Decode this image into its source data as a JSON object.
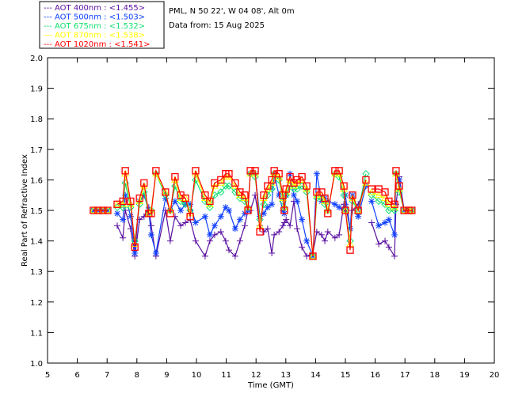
{
  "header": {
    "site": "PML, N 50 22', W 04 08', Alt 0m",
    "date": "Data from: 15 Aug 2025"
  },
  "chart_data": {
    "type": "line",
    "xlabel": "Time (GMT)",
    "ylabel": "Real Part of Refractive Index",
    "xlim": [
      5,
      20
    ],
    "ylim": [
      1.0,
      2.0
    ],
    "xticks": [
      "5",
      "6",
      "7",
      "8",
      "9",
      "10",
      "11",
      "12",
      "13",
      "14",
      "15",
      "16",
      "17",
      "18",
      "19",
      "20"
    ],
    "yticks": [
      "1.0",
      "1.1",
      "1.2",
      "1.3",
      "1.4",
      "1.5",
      "1.6",
      "1.7",
      "1.8",
      "1.9",
      "2.0"
    ],
    "legend_position": "top-left",
    "x": [
      6.54,
      6.7,
      6.86,
      7.02,
      null,
      7.34,
      7.53,
      7.61,
      7.79,
      7.93,
      8.09,
      8.24,
      8.4,
      8.48,
      8.64,
      8.96,
      9.12,
      9.28,
      9.47,
      9.63,
      9.79,
      9.97,
      10.29,
      10.45,
      10.61,
      10.82,
      10.98,
      11.09,
      11.3,
      11.46,
      11.62,
      11.73,
      11.81,
      11.97,
      12.13,
      12.26,
      12.39,
      12.53,
      12.61,
      12.77,
      12.9,
      12.95,
      13.01,
      13.14,
      13.27,
      13.38,
      13.54,
      13.7,
      13.91,
      14.04,
      14.2,
      14.31,
      14.41,
      14.65,
      14.79,
      14.95,
      15.0,
      15.16,
      15.24,
      15.43,
      15.69,
      null,
      15.88,
      16.12,
      16.33,
      16.46,
      16.65,
      16.7,
      16.81,
      16.97,
      17.13,
      17.23
    ],
    "series": [
      {
        "name": "AOT  400nm",
        "mean": "<1.455>",
        "label": "---  AOT  400nm : <1.455>",
        "color": "#5a0fa0",
        "marker": "plus",
        "values": [
          1.5,
          1.5,
          1.5,
          1.5,
          null,
          1.45,
          1.41,
          1.5,
          1.44,
          1.35,
          1.47,
          1.48,
          1.51,
          1.45,
          1.35,
          1.5,
          1.4,
          1.48,
          1.45,
          1.46,
          1.47,
          1.4,
          1.35,
          1.4,
          1.42,
          1.43,
          1.4,
          1.37,
          1.35,
          1.4,
          1.45,
          1.5,
          1.5,
          1.55,
          1.45,
          1.43,
          1.44,
          1.36,
          1.42,
          1.43,
          1.45,
          1.46,
          1.47,
          1.45,
          1.53,
          1.44,
          1.38,
          1.35,
          1.36,
          1.43,
          1.42,
          1.4,
          1.43,
          1.41,
          1.42,
          1.52,
          1.52,
          1.44,
          1.5,
          1.52,
          1.58,
          null,
          1.46,
          1.39,
          1.4,
          1.38,
          1.35,
          1.52,
          1.61,
          1.5,
          1.5,
          1.5
        ]
      },
      {
        "name": "AOT  500nm",
        "mean": "<1.503>",
        "label": "---  AOT  500nm : <1.503>",
        "color": "#1040ff",
        "marker": "asterisk",
        "values": [
          1.5,
          1.5,
          1.5,
          1.5,
          null,
          1.49,
          1.47,
          1.55,
          1.48,
          1.36,
          1.53,
          1.55,
          1.5,
          1.42,
          1.36,
          1.54,
          1.5,
          1.53,
          1.5,
          1.52,
          1.52,
          1.46,
          1.48,
          1.42,
          1.45,
          1.48,
          1.51,
          1.5,
          1.44,
          1.47,
          1.49,
          1.5,
          1.62,
          1.62,
          1.48,
          1.49,
          1.51,
          1.52,
          1.62,
          1.55,
          1.5,
          1.49,
          1.55,
          1.62,
          1.55,
          1.53,
          1.47,
          1.4,
          1.35,
          1.62,
          1.53,
          1.54,
          1.53,
          1.52,
          1.51,
          1.5,
          1.55,
          1.44,
          1.55,
          1.48,
          1.58,
          null,
          1.53,
          1.45,
          1.46,
          1.47,
          1.42,
          1.62,
          1.6,
          1.5,
          1.5,
          1.5
        ]
      },
      {
        "name": "AOT  675nm",
        "mean": "<1.532>",
        "label": "---  AOT  675nm : <1.532>",
        "color": "#10e070",
        "marker": "diamond",
        "values": [
          1.5,
          1.5,
          1.5,
          1.5,
          null,
          1.51,
          1.51,
          1.59,
          1.51,
          1.4,
          1.52,
          1.56,
          1.49,
          1.5,
          1.62,
          1.55,
          1.5,
          1.58,
          1.53,
          1.52,
          1.5,
          1.6,
          1.53,
          1.51,
          1.55,
          1.56,
          1.58,
          1.58,
          1.56,
          1.54,
          1.53,
          1.51,
          1.62,
          1.61,
          1.47,
          1.52,
          1.55,
          1.57,
          1.62,
          1.6,
          1.53,
          1.51,
          1.55,
          1.58,
          1.57,
          1.57,
          1.58,
          1.56,
          1.35,
          1.54,
          1.54,
          1.52,
          1.5,
          1.62,
          1.61,
          1.55,
          1.5,
          1.4,
          1.53,
          1.5,
          1.62,
          null,
          1.55,
          1.53,
          1.52,
          1.5,
          1.5,
          1.62,
          1.56,
          1.5,
          1.5,
          1.5
        ]
      },
      {
        "name": "AOT  870nm",
        "mean": "<1.538>",
        "label": "---  AOT  870nm : <1.538>",
        "color": "#ffff00",
        "marker": "triangle",
        "values": [
          1.5,
          1.5,
          1.5,
          1.5,
          null,
          1.52,
          1.52,
          1.62,
          1.52,
          1.39,
          1.53,
          1.58,
          1.49,
          1.5,
          1.62,
          1.56,
          1.5,
          1.6,
          1.54,
          1.54,
          1.49,
          1.62,
          1.54,
          1.52,
          1.58,
          1.59,
          1.61,
          1.61,
          1.58,
          1.55,
          1.54,
          1.51,
          1.62,
          1.62,
          1.45,
          1.54,
          1.57,
          1.59,
          1.62,
          1.61,
          1.54,
          1.51,
          1.56,
          1.6,
          1.58,
          1.59,
          1.6,
          1.57,
          1.35,
          1.55,
          1.55,
          1.53,
          1.5,
          1.62,
          1.62,
          1.57,
          1.5,
          1.39,
          1.54,
          1.5,
          1.59,
          null,
          1.56,
          1.55,
          1.54,
          1.52,
          1.51,
          1.62,
          1.57,
          1.5,
          1.5,
          1.5
        ]
      },
      {
        "name": "AOT 1020nm",
        "mean": "<1.541>",
        "label": "---  AOT 1020nm : <1.541>",
        "color": "#ff0000",
        "marker": "square",
        "values": [
          1.5,
          1.5,
          1.5,
          1.5,
          null,
          1.52,
          1.53,
          1.63,
          1.53,
          1.38,
          1.54,
          1.59,
          1.49,
          1.49,
          1.63,
          1.56,
          1.49,
          1.61,
          1.55,
          1.54,
          1.48,
          1.63,
          1.55,
          1.53,
          1.59,
          1.6,
          1.62,
          1.62,
          1.59,
          1.56,
          1.55,
          1.5,
          1.63,
          1.63,
          1.43,
          1.55,
          1.58,
          1.6,
          1.63,
          1.62,
          1.55,
          1.5,
          1.57,
          1.61,
          1.59,
          1.6,
          1.61,
          1.58,
          1.35,
          1.56,
          1.56,
          1.54,
          1.49,
          1.63,
          1.63,
          1.58,
          1.5,
          1.37,
          1.55,
          1.5,
          1.6,
          null,
          1.57,
          1.57,
          1.56,
          1.53,
          1.52,
          1.63,
          1.58,
          1.5,
          1.5,
          1.5
        ]
      }
    ]
  }
}
